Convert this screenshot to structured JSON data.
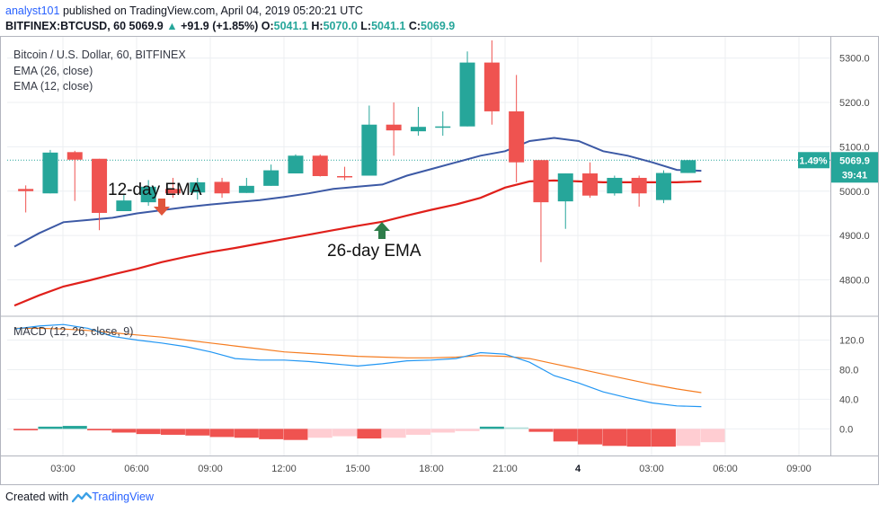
{
  "header": {
    "author": "analyst101",
    "published_text": "published on TradingView.com, April 04, 2019 05:20:21 UTC",
    "symbol": "BITFINEX:BTCUSD, 60",
    "last": "5069.9",
    "change": "+91.9 (+1.85%)",
    "ohlc": {
      "o": "5041.1",
      "h": "5070.0",
      "l": "5041.1",
      "c": "5069.9"
    }
  },
  "footer": {
    "created_with": "Created with",
    "brand": "TradingView"
  },
  "colors": {
    "up": "#26a69a",
    "down": "#ef5350",
    "ema26": "#e0201b",
    "ema12": "#3c59a5",
    "macd": "#2196f3",
    "signal": "#f57c20",
    "hist_up_strong": "#26a69a",
    "hist_up_weak": "#b2dfdb",
    "hist_down_strong": "#ef5350",
    "hist_down_weak": "#ffcdd2",
    "grid": "#eceff2"
  },
  "chart_data": {
    "type": "candlestick",
    "title": "Bitcoin / U.S. Dollar, 60, BITFINEX",
    "legend": [
      "EMA (26, close)",
      "EMA (12, close)"
    ],
    "macd_legend": "MACD (12, 26, close, 9)",
    "x_ticks": [
      "03:00",
      "06:00",
      "09:00",
      "12:00",
      "15:00",
      "18:00",
      "21:00",
      "4",
      "03:00",
      "06:00",
      "09:00"
    ],
    "price_axis": {
      "ticks": [
        5300,
        5200,
        5100,
        5000,
        4900,
        4800
      ],
      "tick_labels": [
        "5300.0",
        "5200.0",
        "5100.0",
        "5000.0",
        "4900.0",
        "4800.0"
      ],
      "range": [
        4720,
        5350
      ]
    },
    "macd_axis": {
      "ticks": [
        120,
        80,
        40,
        0
      ],
      "tick_labels": [
        "120.0",
        "80.0",
        "40.0",
        "0.0"
      ],
      "range": [
        -36,
        151
      ]
    },
    "candles": [
      {
        "o": 5005,
        "h": 5013,
        "l": 4952,
        "c": 5000
      },
      {
        "o": 4995,
        "h": 5093,
        "l": 4995,
        "c": 5087
      },
      {
        "o": 5088,
        "h": 5091,
        "l": 4978,
        "c": 5071
      },
      {
        "o": 5073,
        "h": 5073,
        "l": 4912,
        "c": 4951
      },
      {
        "o": 4955,
        "h": 4993,
        "l": 4955,
        "c": 4979
      },
      {
        "o": 4975,
        "h": 5025,
        "l": 4967,
        "c": 5010
      },
      {
        "o": 5005,
        "h": 5030,
        "l": 4985,
        "c": 4995
      },
      {
        "o": 4997,
        "h": 5030,
        "l": 4981,
        "c": 5020
      },
      {
        "o": 5021,
        "h": 5030,
        "l": 4985,
        "c": 4995
      },
      {
        "o": 4996,
        "h": 5030,
        "l": 4996,
        "c": 5012
      },
      {
        "o": 5012,
        "h": 5060,
        "l": 5012,
        "c": 5047
      },
      {
        "o": 5040,
        "h": 5083,
        "l": 5040,
        "c": 5080
      },
      {
        "o": 5080,
        "h": 5083,
        "l": 5033,
        "c": 5034
      },
      {
        "o": 5034,
        "h": 5055,
        "l": 5025,
        "c": 5032
      },
      {
        "o": 5035,
        "h": 5193,
        "l": 5035,
        "c": 5150
      },
      {
        "o": 5150,
        "h": 5200,
        "l": 5080,
        "c": 5137
      },
      {
        "o": 5135,
        "h": 5190,
        "l": 5125,
        "c": 5145
      },
      {
        "o": 5143,
        "h": 5180,
        "l": 5125,
        "c": 5146
      },
      {
        "o": 5146,
        "h": 5315,
        "l": 5146,
        "c": 5290
      },
      {
        "o": 5290,
        "h": 5340,
        "l": 5150,
        "c": 5180
      },
      {
        "o": 5180,
        "h": 5262,
        "l": 5020,
        "c": 5065
      },
      {
        "o": 5070,
        "h": 5070,
        "l": 4840,
        "c": 4975
      },
      {
        "o": 4977,
        "h": 5040,
        "l": 4915,
        "c": 5040
      },
      {
        "o": 5040,
        "h": 5065,
        "l": 4985,
        "c": 4990
      },
      {
        "o": 4995,
        "h": 5035,
        "l": 4990,
        "c": 5030
      },
      {
        "o": 5030,
        "h": 5035,
        "l": 4965,
        "c": 4995
      },
      {
        "o": 4980,
        "h": 5047,
        "l": 4973,
        "c": 5041
      },
      {
        "o": 5041,
        "h": 5070,
        "l": 5041,
        "c": 5069.9
      }
    ],
    "ema12": [
      4875,
      4905,
      4930,
      4935,
      4940,
      4950,
      4957,
      4964,
      4970,
      4975,
      4980,
      4987,
      4995,
      5005,
      5010,
      5015,
      5035,
      5050,
      5065,
      5080,
      5090,
      5113,
      5120,
      5113,
      5090,
      5080,
      5065,
      5048,
      5046
    ],
    "ema26": [
      4742,
      4765,
      4785,
      4798,
      4812,
      4825,
      4840,
      4852,
      4863,
      4872,
      4882,
      4892,
      4902,
      4912,
      4922,
      4931,
      4945,
      4958,
      4970,
      4985,
      5008,
      5022,
      5024,
      5022,
      5020,
      5020,
      5020,
      5020,
      5022
    ],
    "macd_line": [
      135,
      139,
      141,
      136,
      125,
      120,
      116,
      111,
      104,
      95,
      93,
      93,
      91,
      88,
      85,
      88,
      92,
      93,
      95,
      103,
      101,
      90,
      72,
      62,
      50,
      42,
      35,
      31,
      30
    ],
    "signal_line": [
      136,
      136,
      135,
      133,
      130,
      127,
      124,
      120,
      116,
      112,
      108,
      104,
      102,
      100,
      98,
      97,
      96,
      96,
      97,
      99,
      98,
      95,
      88,
      81,
      74,
      67,
      60,
      54,
      49
    ],
    "histogram": [
      -2,
      3,
      4,
      -2,
      -5,
      -7,
      -8,
      -9,
      -11,
      -12,
      -14,
      -15,
      -12,
      -10,
      -13,
      -12,
      -8,
      -5,
      -3,
      3,
      2,
      -4,
      -17,
      -21,
      -23,
      -24,
      -24,
      -23,
      -18
    ],
    "last_price_label": "5069.9",
    "percent_label": "1.49%",
    "countdown": "39:41",
    "annotations": [
      {
        "text": "12-day EMA",
        "arrow": "down",
        "color": "#e0553b"
      },
      {
        "text": "26-day EMA",
        "arrow": "up",
        "color": "#2e7d4a"
      }
    ]
  }
}
